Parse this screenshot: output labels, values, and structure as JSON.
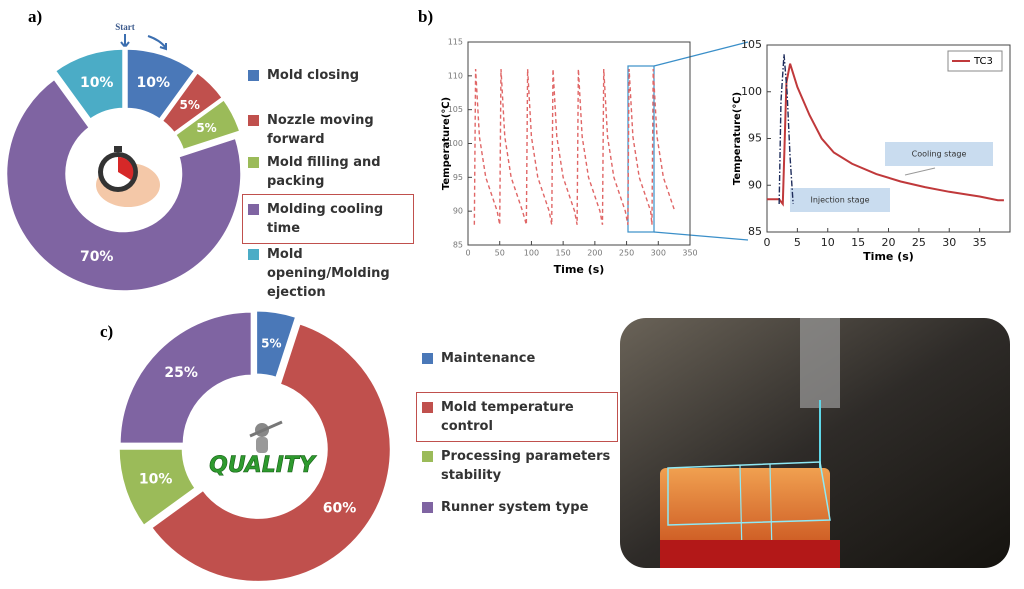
{
  "chart_data": [
    {
      "type": "donut",
      "label": "a)",
      "annotation": "Start",
      "categories": [
        "Mold closing",
        "Nozzle moving forward",
        "Mold filling and packing",
        "Molding cooling time",
        "Mold opening/Molding ejection"
      ],
      "values": [
        10,
        5,
        5,
        70,
        10
      ],
      "value_labels": [
        "10%",
        "5%",
        "5%",
        "70%",
        "10%"
      ],
      "colors": [
        "#4a78b8",
        "#c0504d",
        "#9bbb59",
        "#7f64a2",
        "#4bacc6"
      ],
      "highlight": 3
    },
    {
      "type": "line",
      "label": "b)",
      "xlabel": "Time (s)",
      "ylabel": "Temperature(℃)",
      "xlim": [
        0,
        350
      ],
      "ylim": [
        85,
        115
      ],
      "xticks": [
        0,
        50,
        100,
        150,
        200,
        250,
        300,
        350
      ],
      "yticks": [
        85,
        90,
        95,
        100,
        105,
        110,
        115
      ],
      "series": [
        {
          "color": "#e06666",
          "style": "dashed",
          "x": [
            10,
            12,
            18,
            28,
            46,
            50,
            52,
            58,
            68,
            86,
            92,
            94,
            100,
            110,
            128,
            132,
            134,
            140,
            150,
            168,
            172,
            174,
            180,
            190,
            208,
            212,
            214,
            220,
            230,
            248,
            252,
            254,
            260,
            270,
            288,
            290,
            292,
            298,
            308,
            326
          ],
          "values": [
            88,
            111,
            101,
            95,
            90,
            88,
            111,
            101,
            95,
            90,
            88,
            111,
            101,
            95,
            90,
            88,
            111,
            101,
            95,
            90,
            88,
            111,
            101,
            95,
            90,
            88,
            111,
            101,
            95,
            90,
            88,
            111,
            101,
            95,
            90,
            88,
            111,
            101,
            95,
            90
          ]
        }
      ]
    },
    {
      "type": "line",
      "xlabel": "Time (s)",
      "ylabel": "Temperature(℃)",
      "xlim": [
        0,
        40
      ],
      "ylim": [
        85,
        105
      ],
      "xticks": [
        0,
        5,
        10,
        15,
        20,
        25,
        30,
        35
      ],
      "yticks": [
        85,
        90,
        95,
        100,
        105
      ],
      "legend": "upper right",
      "annotations": [
        "Cooling stage",
        "Injection stage"
      ],
      "series": [
        {
          "name": "TC3",
          "color": "#c0393b",
          "style": "solid",
          "x": [
            0,
            2,
            2.6,
            3.2,
            3.8,
            5,
            7,
            9,
            11,
            14,
            18,
            22,
            26,
            30,
            33,
            35,
            38,
            39
          ],
          "values": [
            88.5,
            88.5,
            88,
            101,
            103,
            100.5,
            97.5,
            95,
            93.5,
            92.3,
            91.2,
            90.4,
            89.8,
            89.3,
            89,
            88.8,
            88.4,
            88.4
          ]
        },
        {
          "color": "#1f2d5c",
          "style": "dashdot",
          "x": [
            2,
            2.3,
            2.8,
            3.3,
            3.8,
            4.3
          ],
          "values": [
            88,
            99,
            104,
            100,
            93,
            88
          ]
        }
      ]
    },
    {
      "type": "donut",
      "label": "c)",
      "center_text": "QUALITY",
      "categories": [
        "Maintenance",
        "Mold temperature control",
        "Processing parameters stability",
        "Runner system type"
      ],
      "values": [
        5,
        60,
        10,
        25
      ],
      "value_labels": [
        "5%",
        "60%",
        "10%",
        "25%"
      ],
      "colors": [
        "#4a78b8",
        "#c0504d",
        "#9bbb59",
        "#7f64a2"
      ],
      "highlight": 1
    }
  ]
}
